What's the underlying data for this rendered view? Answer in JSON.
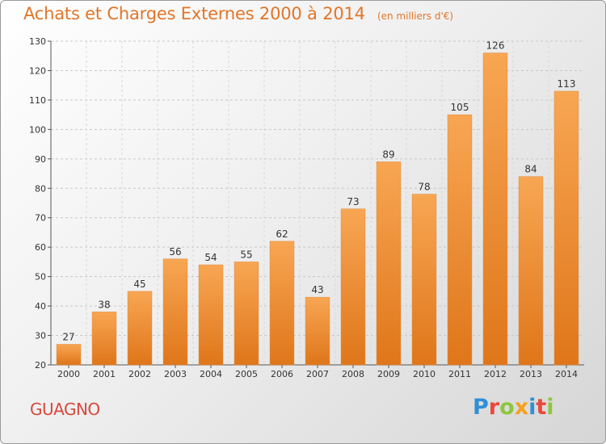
{
  "header": {
    "title": "Achats et Charges Externes 2000 à 2014",
    "unit": "(en milliers d'€)"
  },
  "footer": {
    "commune": "GUAGNO",
    "logo_text": "Proxiti",
    "logo_letters": [
      {
        "char": "P",
        "color": "#2f8fd6"
      },
      {
        "char": "r",
        "color": "#e8493c"
      },
      {
        "char": "o",
        "color": "#8dc63f"
      },
      {
        "char": "x",
        "color": "#f4a11d"
      },
      {
        "char": "i",
        "color": "#2f8fd6"
      },
      {
        "char": "t",
        "color": "#e8493c"
      },
      {
        "char": "i",
        "color": "#8dc63f"
      }
    ]
  },
  "colors": {
    "title": "#e0762a",
    "commune": "#d8483c",
    "bar_light": "#f7a04f",
    "bar_dark": "#e07a1e",
    "grid": "#c8c8c8"
  },
  "chart_data": {
    "type": "bar",
    "categories": [
      "2000",
      "2001",
      "2002",
      "2003",
      "2004",
      "2005",
      "2006",
      "2007",
      "2008",
      "2009",
      "2010",
      "2011",
      "2012",
      "2013",
      "2014"
    ],
    "values": [
      27,
      38,
      45,
      56,
      54,
      55,
      62,
      43,
      73,
      89,
      78,
      105,
      126,
      84,
      113
    ],
    "yticks": [
      20,
      30,
      40,
      50,
      60,
      70,
      80,
      90,
      100,
      110,
      120,
      130
    ],
    "ylim": [
      20,
      130
    ],
    "grid": "horizontal dashed",
    "legend": "none"
  }
}
